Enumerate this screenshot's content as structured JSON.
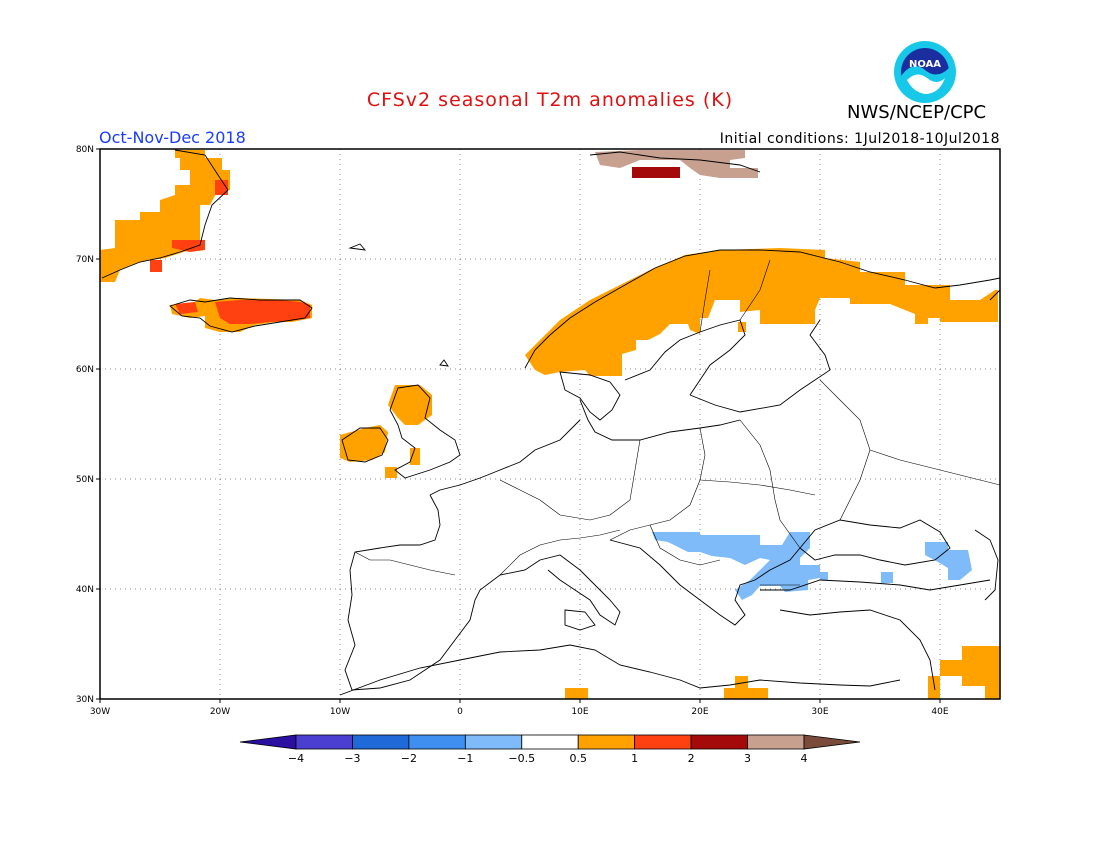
{
  "title": "CFSv2 seasonal T2m anomalies (K)",
  "agency": "NWS/NCEP/CPC",
  "logo_text": "NOAA",
  "season": "Oct-Nov-Dec 2018",
  "initial_conditions": "Initial conditions: 1Jul2018-10Jul2018",
  "lat_labels": [
    "80N",
    "70N",
    "60N",
    "50N",
    "40N",
    "30N"
  ],
  "lon_labels": [
    "30W",
    "20W",
    "10W",
    "0",
    "10E",
    "20E",
    "30E",
    "40E"
  ],
  "colorbar": {
    "labels": [
      "-4",
      "-3",
      "-2",
      "-1",
      "-0.5",
      "0.5",
      "1",
      "2",
      "3",
      "4"
    ],
    "colors": [
      "#2a0fa0",
      "#4a3fd0",
      "#1f6ad8",
      "#3f8ff0",
      "#7fbbf8",
      "#ffffff",
      "#ffa200",
      "#ff4010",
      "#a50a0a",
      "#c8a090",
      "#7a4a3a"
    ]
  }
}
